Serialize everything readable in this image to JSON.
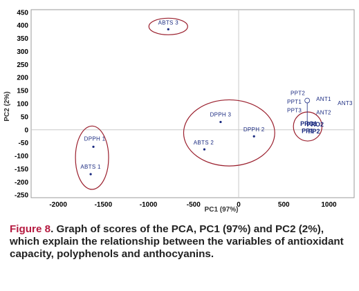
{
  "chart_data": {
    "type": "scatter",
    "xlabel": "PC1 (97%)",
    "ylabel": "PC2 (2%)",
    "xlim": [
      -2300,
      1280
    ],
    "ylim": [
      -260,
      460
    ],
    "x_ticks": [
      -2000,
      -1500,
      -1000,
      -500,
      0,
      500,
      1000
    ],
    "y_ticks": [
      450,
      400,
      350,
      300,
      250,
      200,
      150,
      100,
      50,
      0,
      -50,
      -100,
      -150,
      -200,
      -250
    ],
    "grid": false,
    "zero_lines": true,
    "points": [
      {
        "label": "ABTS 3",
        "x": -780,
        "y": 385
      },
      {
        "label": "DPPH 3",
        "x": -200,
        "y": 30
      },
      {
        "label": "DPPH 2",
        "x": 170,
        "y": -25
      },
      {
        "label": "ABTS 2",
        "x": -380,
        "y": -75
      },
      {
        "label": "DPPH 1",
        "x": -1610,
        "y": -65
      },
      {
        "label": "ABTS 1",
        "x": -1640,
        "y": -170
      },
      {
        "label": "PPT2",
        "x": 760,
        "y": 112
      },
      {
        "label": "PPT1",
        "x": 760,
        "y": 108
      },
      {
        "label": "PPT3",
        "x": 760,
        "y": 104
      },
      {
        "label": "ANT1",
        "x": 760,
        "y": 100
      },
      {
        "label": "ANT2",
        "x": 760,
        "y": 96
      },
      {
        "label": "ANT3",
        "x": 760,
        "y": 92
      },
      {
        "label": "PRO1",
        "x": 760,
        "y": 10
      },
      {
        "label": "PRO2",
        "x": 770,
        "y": 8
      },
      {
        "label": "PP1",
        "x": 760,
        "y": -2
      },
      {
        "label": "PP2",
        "x": 770,
        "y": -6
      }
    ],
    "groups": [
      {
        "members": [
          "ABTS 3"
        ]
      },
      {
        "members": [
          "DPPH 3",
          "DPPH 2",
          "ABTS 2"
        ]
      },
      {
        "members": [
          "DPPH 1",
          "ABTS 1"
        ]
      },
      {
        "members": [
          "PRO1",
          "PRO2",
          "PP1",
          "PP2"
        ]
      }
    ],
    "colors": {
      "points": "#1a2a80",
      "ellipses": "#9a1e2c",
      "zero_lines": "#c8c8c8"
    }
  },
  "caption": {
    "label": "Figure 8",
    "text": ". Graph of scores of the PCA, PC1 (97%) and PC2 (2%), which explain the relationship between the variables of antioxidant capacity, polyphenols and anthocyanins."
  }
}
